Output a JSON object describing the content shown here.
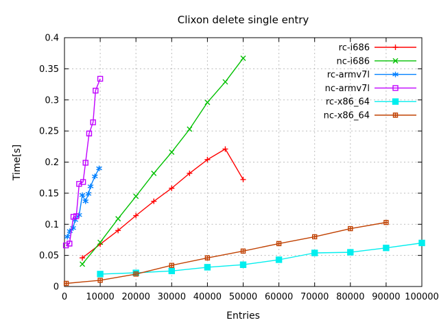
{
  "page": {
    "background": "#ffffff"
  },
  "chart_data": {
    "type": "line",
    "title": "Clixon delete single entry",
    "xlabel": "Entries",
    "ylabel": "Time[s]",
    "xlim": [
      0,
      100000
    ],
    "ylim": [
      0,
      0.4
    ],
    "xticks": {
      "values": [
        0,
        10000,
        20000,
        30000,
        40000,
        50000,
        60000,
        70000,
        80000,
        90000,
        100000
      ],
      "labels": [
        "0",
        "10000",
        "20000",
        "30000",
        "40000",
        "50000",
        "60000",
        "70000",
        "80000",
        "90000",
        "100000"
      ]
    },
    "yticks": {
      "values": [
        0,
        0.05,
        0.1,
        0.15,
        0.2,
        0.25,
        0.3,
        0.35,
        0.4
      ],
      "labels": [
        "0",
        "0.05",
        "0.1",
        "0.15",
        "0.2",
        "0.25",
        "0.3",
        "0.35",
        "0.4"
      ]
    },
    "grid": true,
    "grid_color": "#bbbbbb",
    "axis_color": "#000000",
    "legend": {
      "position": "top-right-inside",
      "border": false
    },
    "series": [
      {
        "name": "rc-i686",
        "color": "#ff0000",
        "marker": "plus",
        "x": [
          5000,
          10000,
          15000,
          20000,
          25000,
          30000,
          35000,
          40000,
          45000,
          50000
        ],
        "y": [
          0.046,
          0.068,
          0.09,
          0.114,
          0.137,
          0.158,
          0.182,
          0.204,
          0.221,
          0.172
        ]
      },
      {
        "name": "nc-i686",
        "color": "#00c000",
        "marker": "cross",
        "x": [
          5000,
          10000,
          15000,
          20000,
          25000,
          30000,
          35000,
          40000,
          45000,
          50000
        ],
        "y": [
          0.036,
          0.071,
          0.109,
          0.145,
          0.182,
          0.216,
          0.253,
          0.296,
          0.329,
          0.367
        ]
      },
      {
        "name": "rc-armv7l",
        "color": "#0080ff",
        "marker": "asterisk",
        "x": [
          800,
          1500,
          2400,
          3000,
          4100,
          5000,
          5900,
          6700,
          7300,
          8500,
          9700
        ],
        "y": [
          0.08,
          0.089,
          0.094,
          0.107,
          0.115,
          0.147,
          0.137,
          0.149,
          0.161,
          0.177,
          0.19
        ]
      },
      {
        "name": "nc-armv7l",
        "color": "#c000ff",
        "marker": "square-open",
        "x": [
          400,
          1400,
          2500,
          3300,
          4100,
          5200,
          5900,
          6900,
          8000,
          8700,
          10000
        ],
        "y": [
          0.066,
          0.069,
          0.112,
          0.113,
          0.165,
          0.168,
          0.199,
          0.246,
          0.264,
          0.315,
          0.334
        ]
      },
      {
        "name": "rc-x86_64",
        "color": "#00eeee",
        "marker": "square-filled",
        "x": [
          10000,
          20000,
          30000,
          40000,
          50000,
          60000,
          70000,
          80000,
          90000,
          100000
        ],
        "y": [
          0.02,
          0.022,
          0.025,
          0.031,
          0.035,
          0.043,
          0.054,
          0.055,
          0.062,
          0.07
        ]
      },
      {
        "name": "nc-x86_64",
        "color": "#c04000",
        "marker": "square-dot",
        "x": [
          500,
          10000,
          20000,
          30000,
          40000,
          50000,
          60000,
          70000,
          80000,
          90000
        ],
        "y": [
          0.005,
          0.01,
          0.02,
          0.034,
          0.046,
          0.057,
          0.069,
          0.08,
          0.093,
          0.103
        ]
      }
    ]
  }
}
